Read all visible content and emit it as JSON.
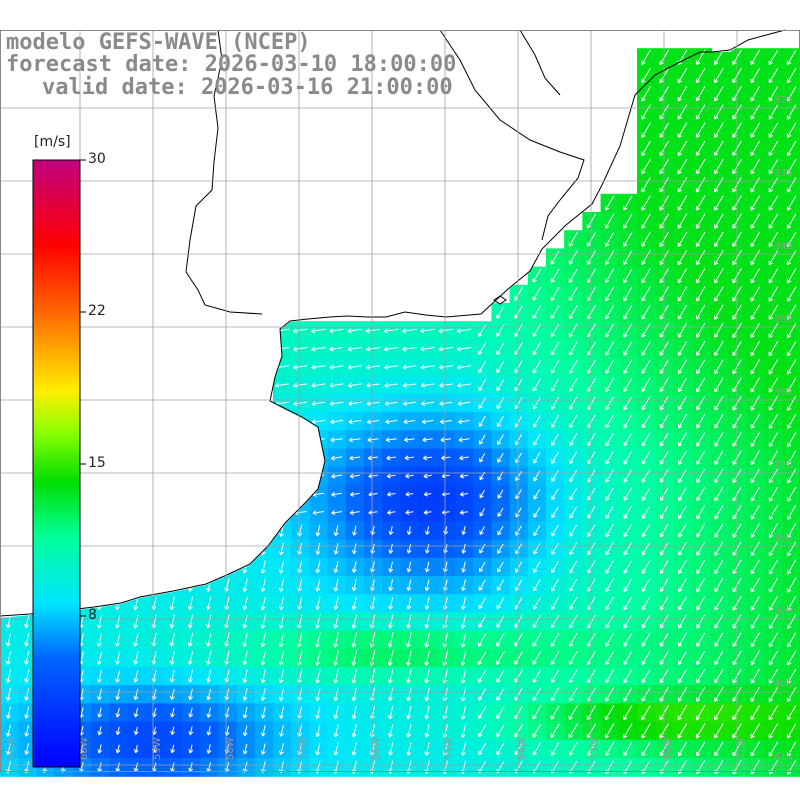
{
  "header": {
    "model_line": "modelo GEFS-WAVE (NCEP)",
    "forecast_line": "forecast date: 2026-03-10 18:00:00",
    "valid_line": "valid date: 2026-03-16 21:00:00"
  },
  "colorbar": {
    "unit_label": "[m/s]",
    "ticks": [
      "30",
      "22",
      "15",
      "8"
    ],
    "min": 0,
    "max": 30
  },
  "axes": {
    "lon_labels": [
      "61W",
      "60W",
      "59W",
      "58W",
      "57W",
      "56W",
      "55W",
      "54W",
      "53W",
      "52W",
      "51W"
    ],
    "lat_labels": [
      "32S",
      "33S",
      "34S",
      "35S",
      "36S",
      "37S",
      "38S",
      "39S",
      "40S",
      "41S"
    ]
  },
  "colors": {
    "land": "#ffffff",
    "coast": "#000000",
    "grid": "#999999",
    "wind_low": "#0000ff",
    "wind_mid": "#00e5ff",
    "wind_high": "#00dd00",
    "wind_max": "#c0007f"
  },
  "map_data": {
    "type": "wind-field",
    "variable": "wind speed",
    "unit": "m/s",
    "lon_range": [
      -61.3,
      -50.3
    ],
    "lat_range": [
      -31.0,
      -41.5
    ],
    "speed_regions": [
      {
        "name": "offshore-high",
        "approx_speed": 11
      },
      {
        "name": "rio-de-la-plata-calm",
        "approx_speed": 3
      },
      {
        "name": "southern-band",
        "approx_speed": 9
      }
    ]
  }
}
